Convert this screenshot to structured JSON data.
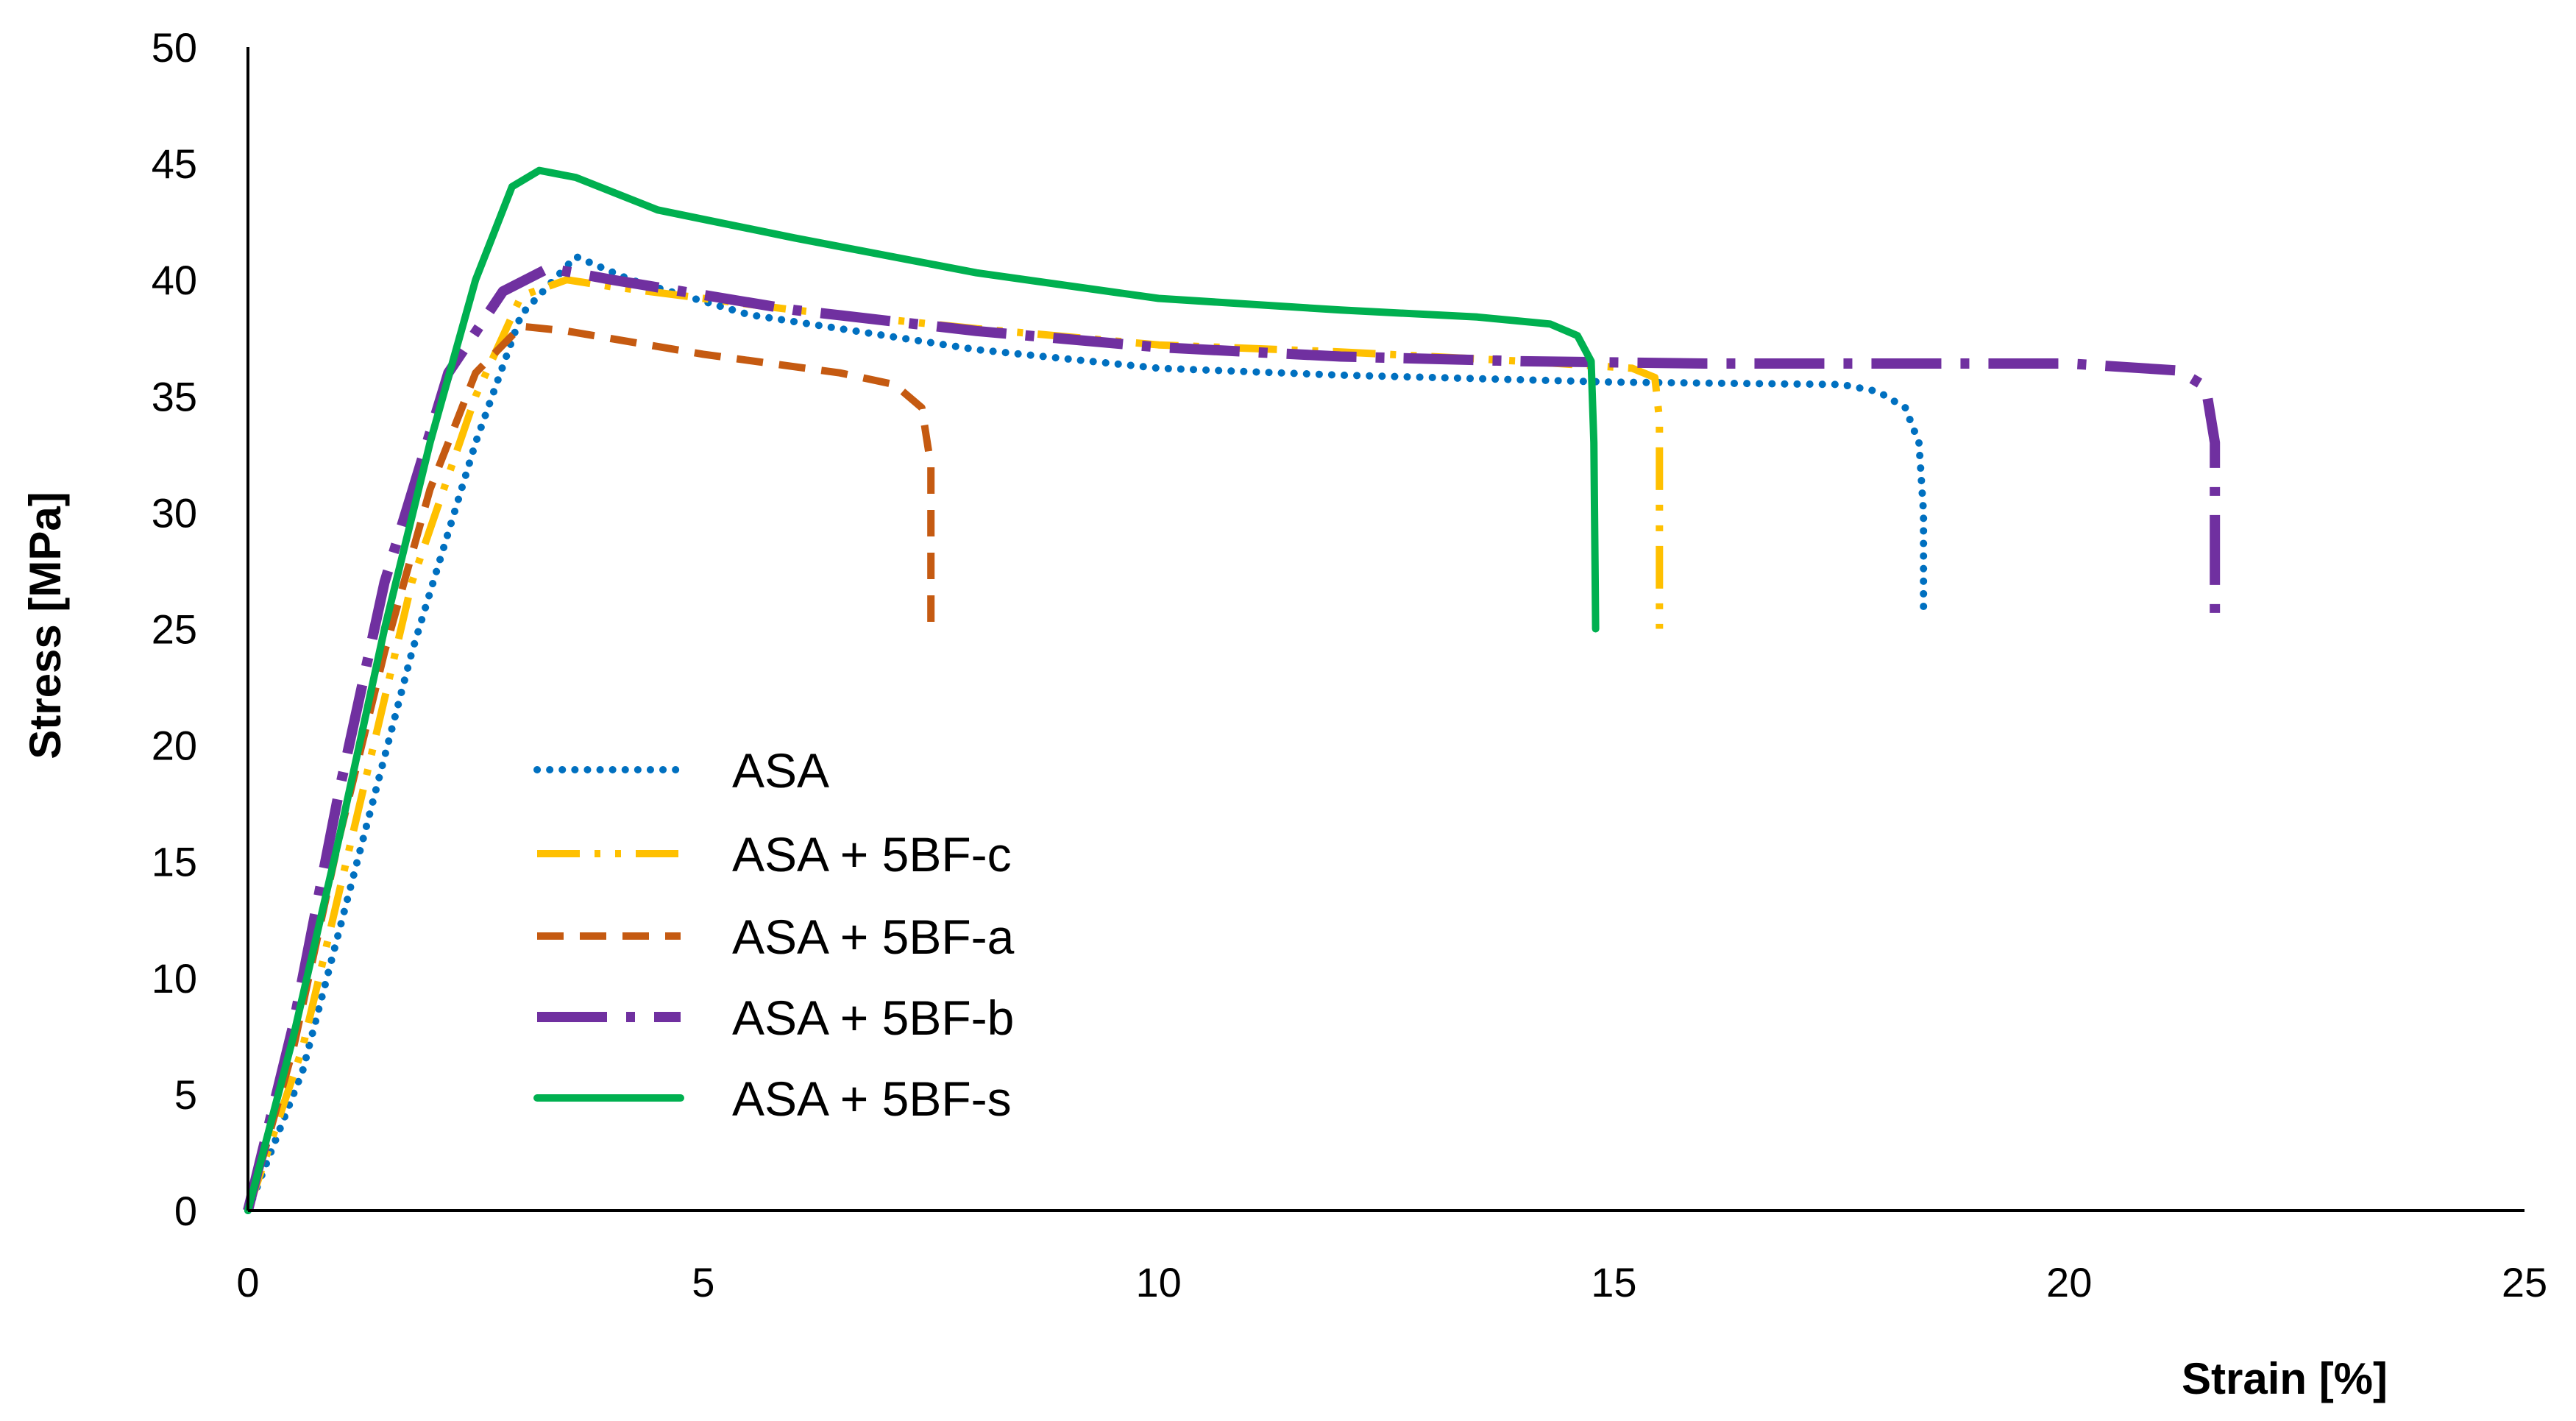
{
  "chart_data": {
    "type": "line",
    "title": "",
    "xlabel": "Strain [%]",
    "ylabel": "Stress [MPa]",
    "xlim": [
      0,
      25
    ],
    "ylim": [
      0,
      50
    ],
    "xticks": [
      "0",
      "5",
      "10",
      "15",
      "20",
      "25"
    ],
    "yticks": [
      "0",
      "5",
      "10",
      "15",
      "20",
      "25",
      "30",
      "35",
      "40",
      "45",
      "50"
    ],
    "grid": false,
    "legend_position": "center-left",
    "series": [
      {
        "name": "ASA",
        "color": "#0070C0",
        "style": "dotted",
        "points": [
          [
            0,
            0
          ],
          [
            0.6,
            6
          ],
          [
            1.2,
            15
          ],
          [
            1.8,
            24
          ],
          [
            2.5,
            33
          ],
          [
            3.0,
            38.5
          ],
          [
            3.6,
            41
          ],
          [
            4.2,
            40
          ],
          [
            5.5,
            38.5
          ],
          [
            8,
            37
          ],
          [
            10,
            36.2
          ],
          [
            12,
            35.9
          ],
          [
            15,
            35.6
          ],
          [
            17.5,
            35.5
          ],
          [
            17.9,
            35.2
          ],
          [
            18.2,
            34.5
          ],
          [
            18.35,
            33
          ],
          [
            18.4,
            30
          ],
          [
            18.4,
            25.6
          ]
        ]
      },
      {
        "name": "ASA + 5BF-c",
        "color": "#FFC000",
        "style": "dash-dot-dot",
        "points": [
          [
            0,
            0
          ],
          [
            0.6,
            7
          ],
          [
            1.2,
            17
          ],
          [
            1.8,
            27
          ],
          [
            2.5,
            35
          ],
          [
            3.0,
            39.3
          ],
          [
            3.5,
            40
          ],
          [
            4.0,
            39.7
          ],
          [
            6,
            38.7
          ],
          [
            8,
            37.9
          ],
          [
            10,
            37.2
          ],
          [
            12,
            36.9
          ],
          [
            14,
            36.5
          ],
          [
            15.2,
            36.2
          ],
          [
            15.45,
            35.8
          ],
          [
            15.5,
            34
          ],
          [
            15.5,
            25
          ]
        ]
      },
      {
        "name": "ASA + 5BF-a",
        "color": "#C55A11",
        "style": "dashed",
        "points": [
          [
            0,
            0
          ],
          [
            0.5,
            7
          ],
          [
            1.0,
            16
          ],
          [
            1.5,
            24
          ],
          [
            2.0,
            31
          ],
          [
            2.5,
            36
          ],
          [
            3.0,
            38
          ],
          [
            3.5,
            37.8
          ],
          [
            5,
            36.8
          ],
          [
            6.5,
            36
          ],
          [
            7.1,
            35.5
          ],
          [
            7.4,
            34.5
          ],
          [
            7.5,
            32
          ],
          [
            7.5,
            25
          ]
        ]
      },
      {
        "name": "ASA + 5BF-b",
        "color": "#7030A0",
        "style": "long-dash-dot",
        "points": [
          [
            0,
            0
          ],
          [
            0.5,
            8
          ],
          [
            1.0,
            18
          ],
          [
            1.5,
            27
          ],
          [
            2.2,
            36
          ],
          [
            2.8,
            39.5
          ],
          [
            3.3,
            40.5
          ],
          [
            4.0,
            40
          ],
          [
            6,
            38.7
          ],
          [
            8,
            37.8
          ],
          [
            10,
            37.1
          ],
          [
            12,
            36.7
          ],
          [
            14,
            36.5
          ],
          [
            16,
            36.4
          ],
          [
            18,
            36.4
          ],
          [
            20,
            36.4
          ],
          [
            21.2,
            36.1
          ],
          [
            21.5,
            35.4
          ],
          [
            21.6,
            33
          ],
          [
            21.6,
            25
          ]
        ]
      },
      {
        "name": "ASA + 5BF-s",
        "color": "#00B050",
        "style": "solid",
        "points": [
          [
            0,
            0
          ],
          [
            0.5,
            7.5
          ],
          [
            1.0,
            16
          ],
          [
            1.5,
            25
          ],
          [
            2.0,
            33
          ],
          [
            2.5,
            40
          ],
          [
            2.9,
            44
          ],
          [
            3.2,
            44.7
          ],
          [
            3.6,
            44.4
          ],
          [
            4.5,
            43
          ],
          [
            6,
            41.8
          ],
          [
            8,
            40.3
          ],
          [
            10,
            39.2
          ],
          [
            12,
            38.7
          ],
          [
            13.5,
            38.4
          ],
          [
            14.3,
            38.1
          ],
          [
            14.6,
            37.6
          ],
          [
            14.75,
            36.5
          ],
          [
            14.78,
            33
          ],
          [
            14.8,
            25
          ]
        ]
      }
    ]
  }
}
